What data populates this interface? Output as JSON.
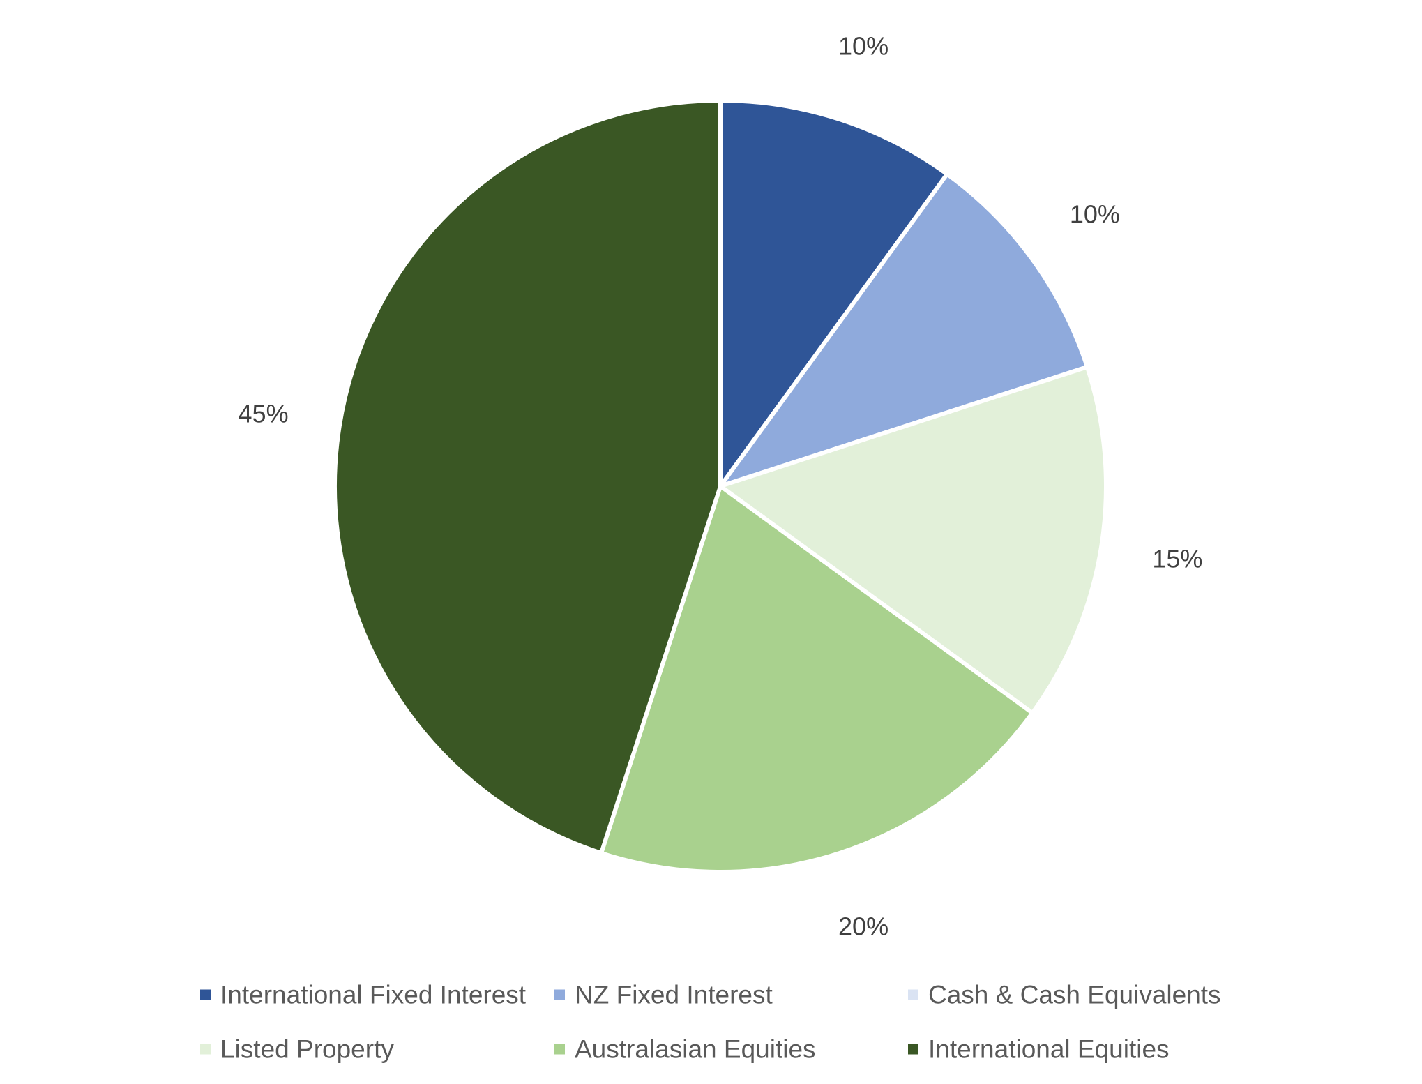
{
  "chart_data": {
    "type": "pie",
    "title": "",
    "start_angle_deg": 0,
    "direction": "clockwise",
    "categories": [
      "International Fixed Interest",
      "NZ Fixed Interest",
      "Cash & Cash Equivalents",
      "Listed Property",
      "Australasian Equities",
      "International Equities"
    ],
    "values": [
      10,
      10,
      0,
      15,
      20,
      45
    ],
    "data_labels": [
      "10%",
      "10%",
      "",
      "15%",
      "20%",
      "45%"
    ],
    "colors": [
      "#2F5597",
      "#8FAADC",
      "#DAE3F3",
      "#E2F0D9",
      "#A9D18E",
      "#3A5724"
    ],
    "legend": {
      "position": "bottom",
      "items": [
        {
          "label": "International Fixed Interest",
          "color": "#2F5597"
        },
        {
          "label": "NZ Fixed Interest",
          "color": "#8FAADC"
        },
        {
          "label": "Cash & Cash Equivalents",
          "color": "#DAE3F3"
        },
        {
          "label": "Listed Property",
          "color": "#E2F0D9"
        },
        {
          "label": "Australasian Equities",
          "color": "#A9D18E"
        },
        {
          "label": "International Equities",
          "color": "#3A5724"
        }
      ]
    }
  }
}
